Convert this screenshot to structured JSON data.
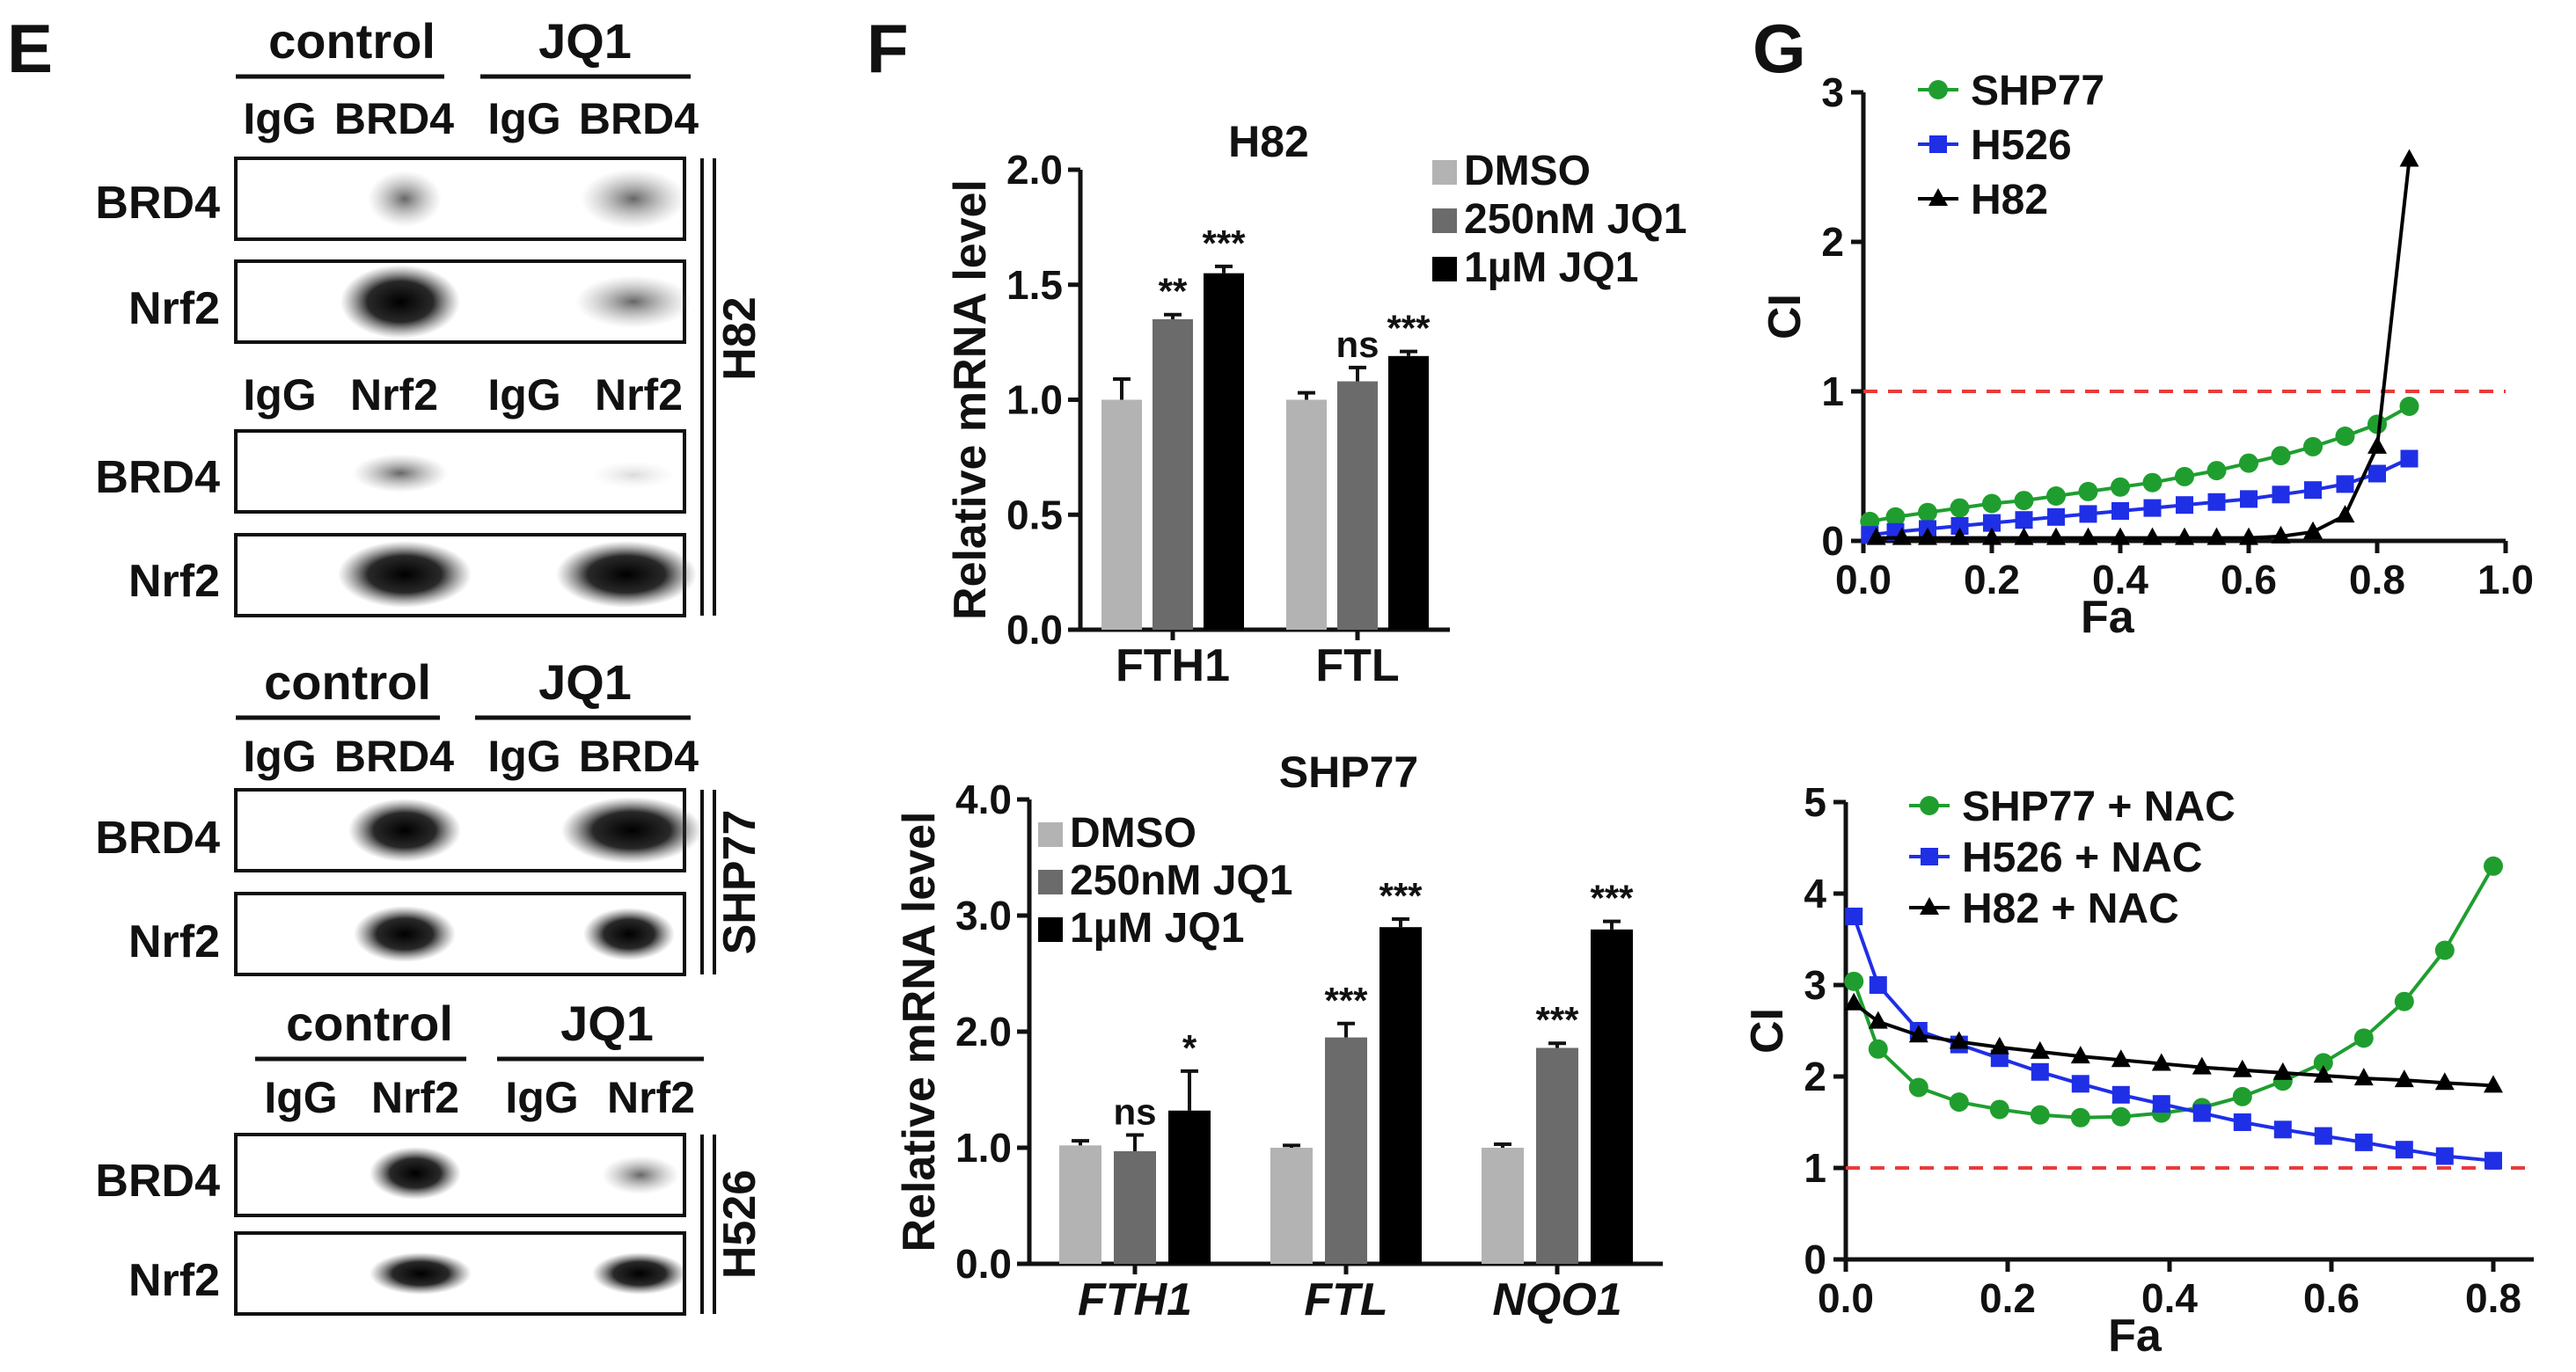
{
  "panels": {
    "e": {
      "letter": "E",
      "h82": {
        "cell_label": "H82",
        "block1": {
          "groups": [
            "control",
            "JQ1"
          ],
          "lanes": [
            "IgG",
            "BRD4",
            "IgG",
            "BRD4"
          ],
          "rows": [
            "BRD4",
            "Nrf2"
          ]
        },
        "block2": {
          "lanes": [
            "IgG",
            "Nrf2",
            "IgG",
            "Nrf2"
          ],
          "rows": [
            "BRD4",
            "Nrf2"
          ]
        }
      },
      "shp77": {
        "cell_label": "SHP77",
        "groups": [
          "control",
          "JQ1"
        ],
        "lanes": [
          "IgG",
          "BRD4",
          "IgG",
          "BRD4"
        ],
        "rows": [
          "BRD4",
          "Nrf2"
        ]
      },
      "h526": {
        "cell_label": "H526",
        "groups": [
          "control",
          "JQ1"
        ],
        "lanes": [
          "IgG",
          "Nrf2",
          "IgG",
          "Nrf2"
        ],
        "rows": [
          "BRD4",
          "Nrf2"
        ]
      }
    },
    "f": {
      "letter": "F"
    },
    "g": {
      "letter": "G"
    }
  },
  "colors": {
    "dmso": "#b3b3b3",
    "jq1_250": "#6b6b6b",
    "jq1_1um": "#000000",
    "shp77": "#1f9e2f",
    "h526": "#1f2fe6",
    "h82": "#000000",
    "threshold": "#e83b3b"
  },
  "chart_data": [
    {
      "id": "f_h82",
      "type": "bar",
      "title": "H82",
      "ylabel": "Relative mRNA level",
      "xlabel": "",
      "ylim": [
        0,
        2.0
      ],
      "yticks": [
        "0.0",
        "0.5",
        "1.0",
        "1.5",
        "2.0"
      ],
      "categories": [
        "FTH1",
        "FTL"
      ],
      "series": [
        {
          "name": "DMSO",
          "values": [
            1.0,
            1.0
          ],
          "errors": [
            0.09,
            0.03
          ]
        },
        {
          "name": "250nM JQ1",
          "values": [
            1.35,
            1.08
          ],
          "errors": [
            0.02,
            0.06
          ]
        },
        {
          "name": "1µM JQ1",
          "values": [
            1.55,
            1.19
          ],
          "errors": [
            0.03,
            0.02
          ]
        }
      ],
      "annotations": [
        [
          "",
          "**",
          "***"
        ],
        [
          "",
          "ns",
          "***"
        ]
      ]
    },
    {
      "id": "f_shp77",
      "type": "bar",
      "title": "SHP77",
      "ylabel": "Relative mRNA level",
      "xlabel": "",
      "ylim": [
        0,
        4.0
      ],
      "yticks": [
        "0.0",
        "1.0",
        "2.0",
        "3.0",
        "4.0"
      ],
      "categories": [
        "FTH1",
        "FTL",
        "NQO1"
      ],
      "series": [
        {
          "name": "DMSO",
          "values": [
            1.02,
            1.0,
            1.0
          ],
          "errors": [
            0.04,
            0.02,
            0.03
          ]
        },
        {
          "name": "250nM JQ1",
          "values": [
            0.97,
            1.95,
            1.86
          ],
          "errors": [
            0.14,
            0.12,
            0.04
          ]
        },
        {
          "name": "1µM JQ1",
          "values": [
            1.32,
            2.9,
            2.88
          ],
          "errors": [
            0.34,
            0.07,
            0.07
          ]
        }
      ],
      "annotations": [
        [
          "",
          "ns",
          "*"
        ],
        [
          "",
          "***",
          "***"
        ],
        [
          "",
          "***",
          "***"
        ]
      ]
    },
    {
      "id": "g_top",
      "type": "line",
      "title": "",
      "xlabel": "Fa",
      "ylabel": "CI",
      "xlim": [
        0,
        1.0
      ],
      "ylim": [
        0,
        3
      ],
      "xticks": [
        "0.0",
        "0.2",
        "0.4",
        "0.6",
        "0.8",
        "1.0"
      ],
      "yticks": [
        "0",
        "1",
        "2",
        "3"
      ],
      "threshold": 1,
      "series": [
        {
          "name": "SHP77",
          "marker": "circle",
          "x": [
            0.01,
            0.05,
            0.1,
            0.15,
            0.2,
            0.25,
            0.3,
            0.35,
            0.4,
            0.45,
            0.5,
            0.55,
            0.6,
            0.65,
            0.7,
            0.75,
            0.8,
            0.85
          ],
          "y": [
            0.13,
            0.16,
            0.19,
            0.22,
            0.25,
            0.27,
            0.3,
            0.33,
            0.36,
            0.39,
            0.43,
            0.47,
            0.52,
            0.57,
            0.63,
            0.7,
            0.78,
            0.9
          ]
        },
        {
          "name": "H526",
          "marker": "square",
          "x": [
            0.01,
            0.05,
            0.1,
            0.15,
            0.2,
            0.25,
            0.3,
            0.35,
            0.4,
            0.45,
            0.5,
            0.55,
            0.6,
            0.65,
            0.7,
            0.75,
            0.8,
            0.85
          ],
          "y": [
            0.04,
            0.06,
            0.08,
            0.1,
            0.12,
            0.14,
            0.16,
            0.18,
            0.2,
            0.22,
            0.24,
            0.26,
            0.28,
            0.31,
            0.34,
            0.38,
            0.45,
            0.55
          ]
        },
        {
          "name": "H82",
          "marker": "triangle",
          "x": [
            0.02,
            0.06,
            0.1,
            0.15,
            0.2,
            0.25,
            0.3,
            0.35,
            0.4,
            0.45,
            0.5,
            0.55,
            0.6,
            0.65,
            0.7,
            0.75,
            0.8,
            0.85
          ],
          "y": [
            0.02,
            0.02,
            0.02,
            0.02,
            0.02,
            0.02,
            0.02,
            0.02,
            0.02,
            0.02,
            0.02,
            0.02,
            0.02,
            0.03,
            0.06,
            0.17,
            0.63,
            2.55
          ]
        }
      ]
    },
    {
      "id": "g_bottom",
      "type": "line",
      "title": "",
      "xlabel": "Fa",
      "ylabel": "CI",
      "xlim": [
        0,
        0.85
      ],
      "ylim": [
        0,
        5
      ],
      "xticks": [
        "0.0",
        "0.2",
        "0.4",
        "0.6",
        "0.8"
      ],
      "yticks": [
        "0",
        "1",
        "2",
        "3",
        "4",
        "5"
      ],
      "threshold": 1,
      "series": [
        {
          "name": "SHP77 + NAC",
          "marker": "circle",
          "x": [
            0.01,
            0.04,
            0.09,
            0.14,
            0.19,
            0.24,
            0.29,
            0.34,
            0.39,
            0.44,
            0.49,
            0.54,
            0.59,
            0.64,
            0.69,
            0.74,
            0.8
          ],
          "y": [
            3.04,
            2.3,
            1.88,
            1.72,
            1.64,
            1.58,
            1.55,
            1.56,
            1.6,
            1.66,
            1.78,
            1.95,
            2.15,
            2.42,
            2.82,
            3.38,
            4.3
          ]
        },
        {
          "name": "H526 + NAC",
          "marker": "square",
          "x": [
            0.01,
            0.04,
            0.09,
            0.14,
            0.19,
            0.24,
            0.29,
            0.34,
            0.39,
            0.44,
            0.49,
            0.54,
            0.59,
            0.64,
            0.69,
            0.74,
            0.8
          ],
          "y": [
            3.75,
            3.0,
            2.5,
            2.35,
            2.2,
            2.05,
            1.92,
            1.8,
            1.7,
            1.6,
            1.5,
            1.42,
            1.35,
            1.28,
            1.2,
            1.13,
            1.08
          ]
        },
        {
          "name": "H82 + NAC",
          "marker": "triangle",
          "x": [
            0.01,
            0.04,
            0.09,
            0.14,
            0.19,
            0.24,
            0.29,
            0.34,
            0.39,
            0.44,
            0.49,
            0.54,
            0.59,
            0.64,
            0.69,
            0.74,
            0.8
          ],
          "y": [
            2.8,
            2.6,
            2.45,
            2.38,
            2.32,
            2.27,
            2.22,
            2.18,
            2.14,
            2.1,
            2.07,
            2.04,
            2.01,
            1.98,
            1.96,
            1.93,
            1.9
          ]
        }
      ]
    }
  ]
}
